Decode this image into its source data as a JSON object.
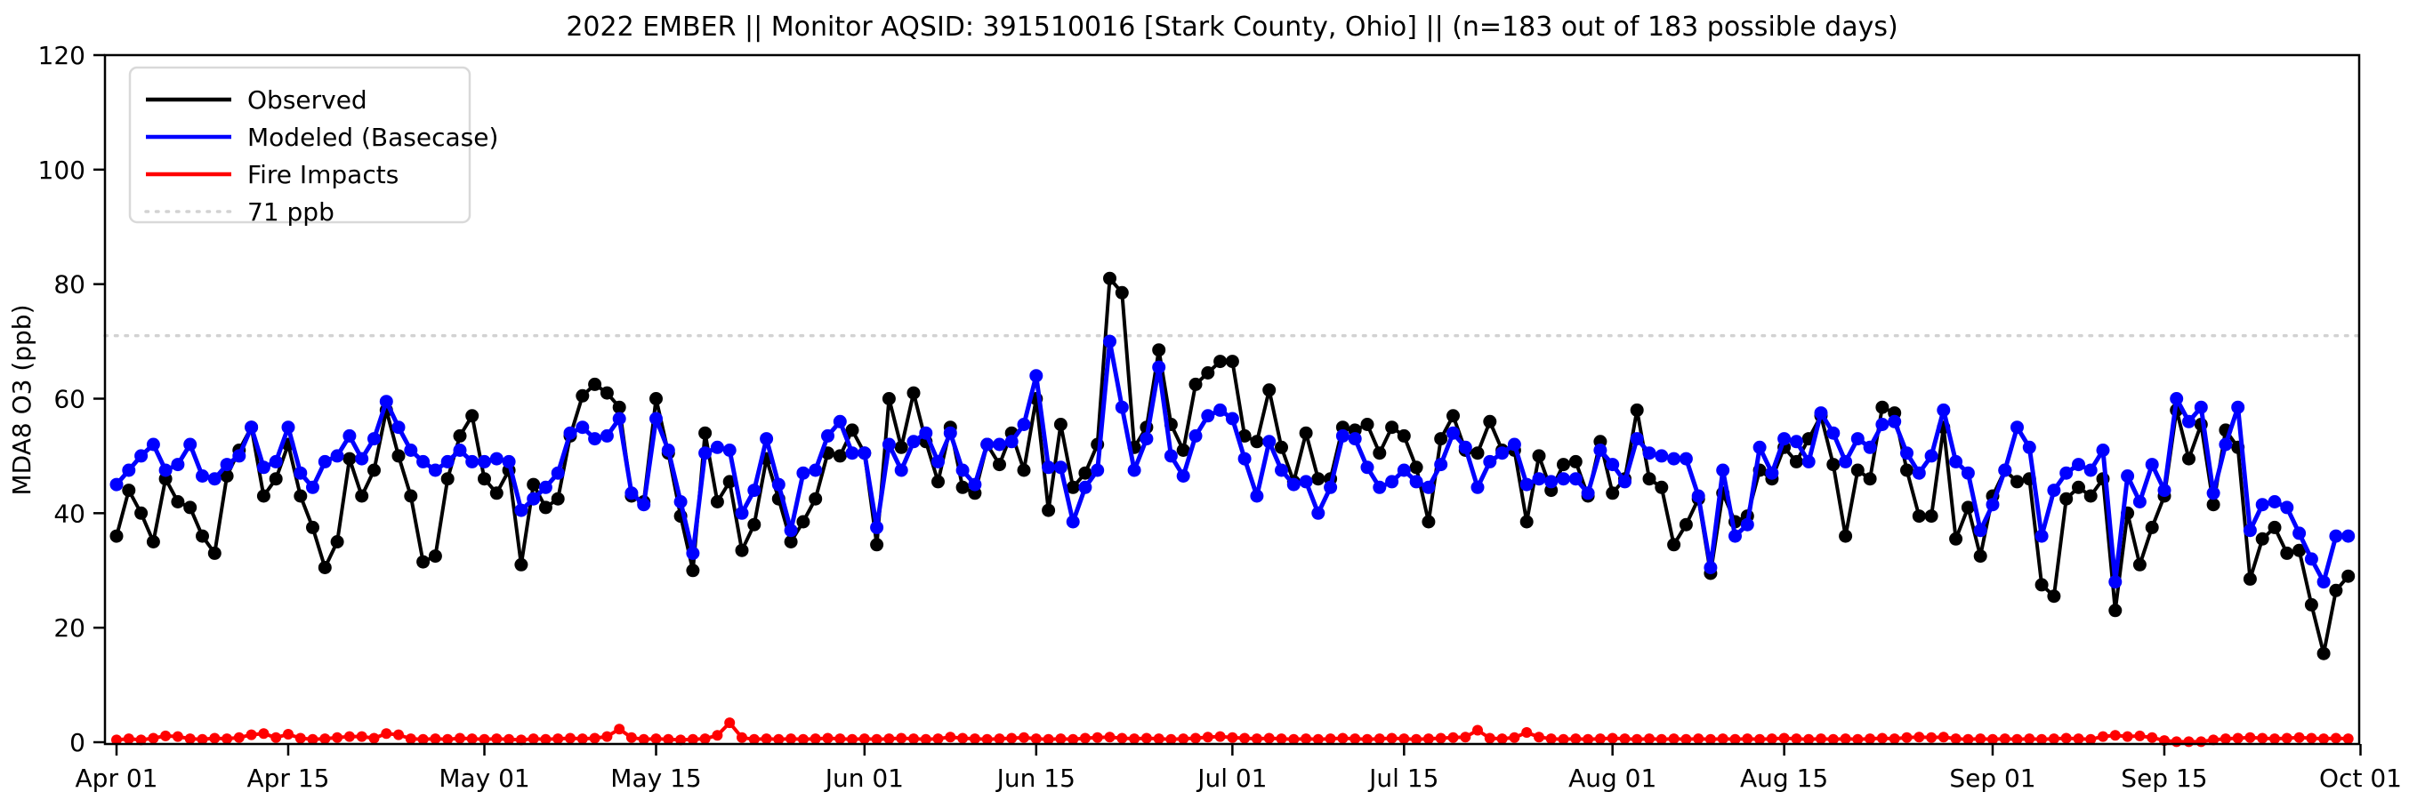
{
  "chart_data": {
    "type": "line",
    "title": "2022 EMBER || Monitor AQSID: 391510016 [Stark County, Ohio] || (n=183 out of 183 possible days)",
    "xlabel": "",
    "ylabel": "MDA8 O3 (ppb)",
    "ylim": [
      0,
      120
    ],
    "yticks": [
      0,
      20,
      40,
      60,
      80,
      100,
      120
    ],
    "x_tick_labels": [
      "Apr 01",
      "Apr 15",
      "May 01",
      "May 15",
      "Jun 01",
      "Jun 15",
      "Jul 01",
      "Jul 15",
      "Aug 01",
      "Aug 15",
      "Sep 01",
      "Sep 15",
      "Oct 01"
    ],
    "x_tick_day_index": [
      0,
      14,
      30,
      44,
      61,
      75,
      91,
      105,
      122,
      136,
      153,
      167,
      183
    ],
    "x_start_date": "Apr 01",
    "x_end_date": "Oct 01",
    "n_days": 183,
    "grid": false,
    "legend_position": "upper-left",
    "threshold": {
      "value": 71,
      "label": "71 ppb",
      "color": "#d2d2d2",
      "style": "dotted"
    },
    "legend": [
      {
        "label": "Observed",
        "color": "#000000",
        "style": "solid"
      },
      {
        "label": "Modeled (Basecase)",
        "color": "#0000ff",
        "style": "solid"
      },
      {
        "label": "Fire Impacts",
        "color": "#ff0000",
        "style": "solid"
      },
      {
        "label": "71 ppb",
        "color": "#d2d2d2",
        "style": "dotted"
      }
    ],
    "series": [
      {
        "name": "Observed",
        "color": "#000000",
        "values": [
          36,
          44,
          40,
          35,
          46,
          42,
          41,
          36,
          33,
          46.5,
          51,
          55,
          43,
          46,
          52,
          43,
          37.5,
          30.5,
          35,
          49.5,
          43,
          47.5,
          58,
          50,
          43,
          31.5,
          32.5,
          46,
          53.5,
          57,
          46,
          43.5,
          47.5,
          31,
          45,
          41,
          42.5,
          53.5,
          60.5,
          62.5,
          61,
          58.5,
          43,
          42,
          60,
          50.5,
          39.5,
          30,
          54,
          42,
          45.5,
          33.5,
          38,
          49.5,
          42.5,
          35,
          38.5,
          42.5,
          50.5,
          50,
          54.5,
          50.5,
          34.5,
          60,
          51.5,
          61,
          52.5,
          45.5,
          55,
          44.5,
          43.5,
          52,
          48.5,
          54,
          47.5,
          60,
          40.5,
          55.5,
          44.5,
          47,
          52,
          81,
          78.5,
          51.5,
          55,
          68.5,
          55.5,
          51,
          62.5,
          64.5,
          66.5,
          66.5,
          53.5,
          52.5,
          61.5,
          51.5,
          45.5,
          54,
          46,
          46,
          55,
          54.5,
          55.5,
          50.5,
          55,
          53.5,
          48,
          38.5,
          53,
          57,
          51,
          50.5,
          56,
          51,
          51,
          38.5,
          50,
          44,
          48.5,
          49,
          43,
          52.5,
          43.5,
          46,
          58,
          46,
          44.5,
          34.5,
          38,
          42.5,
          29.5,
          43.5,
          38.5,
          39.5,
          47.5,
          46,
          51.5,
          49,
          53,
          57,
          48.5,
          36,
          47.5,
          46,
          58.5,
          57.5,
          47.5,
          39.5,
          39.5,
          55,
          35.5,
          41,
          32.5,
          43,
          47.5,
          45.5,
          46,
          27.5,
          25.5,
          42.5,
          44.5,
          43,
          46,
          23,
          40,
          31,
          37.5,
          43,
          58,
          49.5,
          55.5,
          41.5,
          54.5,
          51.5,
          28.5,
          35.5,
          37.5,
          33,
          33.5,
          24,
          15.5,
          26.5,
          29
        ]
      },
      {
        "name": "Modeled (Basecase)",
        "color": "#0000ff",
        "values": [
          45,
          47.5,
          50,
          52,
          47.5,
          48.5,
          52,
          46.5,
          46,
          48.5,
          50,
          55,
          48,
          49,
          55,
          47,
          44.5,
          49,
          50,
          53.5,
          49.5,
          53,
          59.5,
          55,
          51,
          49,
          47.5,
          49,
          51,
          49,
          49,
          49.5,
          49,
          40.5,
          42.5,
          44.5,
          47,
          54,
          55,
          53,
          53.5,
          56.5,
          43.5,
          41.5,
          56.5,
          51,
          42,
          33,
          50.5,
          51.5,
          51,
          40,
          44,
          53,
          45,
          37,
          47,
          47.5,
          53.5,
          56,
          50.5,
          50.5,
          37.5,
          52,
          47.5,
          52.5,
          54,
          49,
          54,
          47.5,
          45,
          52,
          52,
          52.5,
          55.5,
          64,
          48,
          48,
          38.5,
          44.5,
          47.5,
          70,
          58.5,
          47.5,
          53,
          65.5,
          50,
          46.5,
          53.5,
          57,
          58,
          56.5,
          49.5,
          43,
          52.5,
          47.5,
          45,
          45.5,
          40,
          44.5,
          53.5,
          53,
          48,
          44.5,
          45.5,
          47.5,
          45.5,
          44.5,
          48.5,
          54,
          51.5,
          44.5,
          49,
          50.5,
          52,
          45,
          46,
          45.5,
          46,
          46,
          43.5,
          51,
          48.5,
          45.5,
          53,
          50.5,
          50,
          49.5,
          49.5,
          43,
          30.5,
          47.5,
          36,
          38,
          51.5,
          47,
          53,
          52.5,
          49,
          57.5,
          54,
          49,
          53,
          51.5,
          55.5,
          56,
          50.5,
          47,
          50,
          58,
          49,
          47,
          37,
          41.5,
          47.5,
          55,
          51.5,
          36,
          44,
          47,
          48.5,
          47.5,
          51,
          28,
          46.5,
          42,
          48.5,
          44,
          60,
          56,
          58.5,
          43.5,
          52,
          58.5,
          37,
          41.5,
          42,
          41,
          36.5,
          32,
          28,
          36,
          36
        ]
      },
      {
        "name": "Fire Impacts",
        "color": "#ff0000",
        "values": [
          0.4,
          0.6,
          0.4,
          0.7,
          1.1,
          1,
          0.6,
          0.5,
          0.7,
          0.6,
          0.8,
          1.3,
          1.5,
          0.8,
          1.4,
          0.7,
          0.5,
          0.6,
          0.8,
          1,
          1,
          0.7,
          1.5,
          1.3,
          0.6,
          0.5,
          0.6,
          0.5,
          0.7,
          0.6,
          0.5,
          0.6,
          0.5,
          0.4,
          0.6,
          0.5,
          0.6,
          0.7,
          0.6,
          0.7,
          1,
          2.3,
          0.8,
          0.5,
          0.6,
          0.5,
          0.4,
          0.5,
          0.6,
          1.2,
          3.4,
          0.8,
          0.5,
          0.6,
          0.5,
          0.6,
          0.5,
          0.6,
          0.7,
          0.6,
          0.5,
          0.6,
          0.5,
          0.6,
          0.7,
          0.6,
          0.5,
          0.6,
          0.9,
          0.7,
          0.6,
          0.5,
          0.6,
          0.7,
          0.8,
          0.6,
          0.5,
          0.6,
          0.5,
          0.7,
          0.8,
          0.9,
          0.7,
          0.6,
          0.7,
          0.6,
          0.5,
          0.6,
          0.7,
          0.9,
          1,
          0.8,
          0.7,
          0.6,
          0.7,
          0.6,
          0.5,
          0.6,
          0.5,
          0.6,
          0.7,
          0.6,
          0.5,
          0.6,
          0.7,
          0.6,
          0.5,
          0.6,
          0.7,
          0.8,
          0.9,
          2.1,
          0.7,
          0.6,
          0.8,
          1.7,
          0.9,
          0.6,
          0.5,
          0.6,
          0.5,
          0.6,
          0.7,
          0.6,
          0.5,
          0.6,
          0.5,
          0.6,
          0.5,
          0.6,
          0.5,
          0.6,
          0.5,
          0.6,
          0.5,
          0.6,
          0.7,
          0.6,
          0.5,
          0.6,
          0.5,
          0.6,
          0.5,
          0.6,
          0.7,
          0.6,
          0.8,
          0.9,
          0.8,
          0.9,
          0.6,
          0.5,
          0.6,
          0.5,
          0.6,
          0.5,
          0.6,
          0.5,
          0.6,
          0.7,
          0.6,
          0.5,
          1,
          1.2,
          1,
          1.1,
          0.8,
          0.3,
          0.1,
          0.1,
          0.1,
          0.4,
          0.6,
          0.7,
          0.8,
          0.7,
          0.6,
          0.7,
          0.8,
          0.7,
          0.6,
          0.7,
          0.6
        ]
      }
    ]
  }
}
